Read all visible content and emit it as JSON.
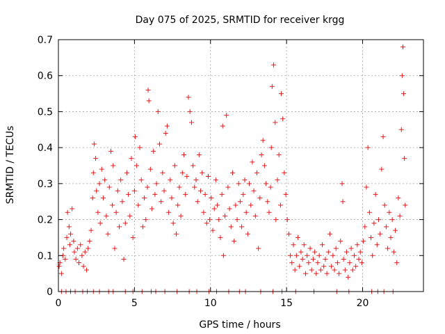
{
  "chart_data": {
    "type": "scatter",
    "title": "Day 075 of 2025, SRMTID for receiver krgg",
    "xlabel": "GPS time / hours",
    "ylabel": "SRMTID / TECUs",
    "xlim": [
      0,
      24
    ],
    "ylim": [
      0,
      0.7
    ],
    "xticks": [
      0,
      5,
      10,
      15,
      20
    ],
    "xtick_labels": [
      "0",
      "5",
      "10",
      "15",
      "20"
    ],
    "yticks": [
      0,
      0.1,
      0.2,
      0.3,
      0.4,
      0.5,
      0.6,
      0.7
    ],
    "ytick_labels": [
      "0",
      "0.1",
      "0.2",
      "0.3",
      "0.4",
      "0.5",
      "0.6",
      "0.7"
    ],
    "grid": true,
    "marker": "+",
    "color": "#e41a1c",
    "series": [
      {
        "name": "SRMTID",
        "points": [
          [
            0.05,
            0.07
          ],
          [
            0.1,
            0.08
          ],
          [
            0.2,
            0.05
          ],
          [
            0.3,
            0.1
          ],
          [
            0.35,
            0.12
          ],
          [
            0.45,
            0.09
          ],
          [
            0.55,
            0.15
          ],
          [
            0.6,
            0.22
          ],
          [
            0.7,
            0.18
          ],
          [
            0.75,
            0.13
          ],
          [
            0.8,
            0.16
          ],
          [
            0.9,
            0.23
          ],
          [
            1.0,
            0.14
          ],
          [
            1.05,
            0.11
          ],
          [
            1.15,
            0.09
          ],
          [
            1.25,
            0.12
          ],
          [
            1.35,
            0.08
          ],
          [
            1.45,
            0.13
          ],
          [
            1.55,
            0.1
          ],
          [
            1.65,
            0.07
          ],
          [
            1.75,
            0.11
          ],
          [
            1.85,
            0.06
          ],
          [
            1.95,
            0.12
          ],
          [
            2.05,
            0.14
          ],
          [
            2.15,
            0.17
          ],
          [
            2.25,
            0.26
          ],
          [
            2.3,
            0.33
          ],
          [
            2.35,
            0.41
          ],
          [
            2.45,
            0.37
          ],
          [
            2.5,
            0.28
          ],
          [
            2.6,
            0.22
          ],
          [
            2.7,
            0.3
          ],
          [
            2.75,
            0.19
          ],
          [
            2.85,
            0.34
          ],
          [
            2.95,
            0.26
          ],
          [
            3.05,
            0.31
          ],
          [
            3.15,
            0.21
          ],
          [
            3.25,
            0.16
          ],
          [
            3.35,
            0.29
          ],
          [
            3.45,
            0.39
          ],
          [
            3.55,
            0.24
          ],
          [
            3.6,
            0.35
          ],
          [
            3.7,
            0.12
          ],
          [
            3.8,
            0.22
          ],
          [
            3.9,
            0.28
          ],
          [
            4.0,
            0.18
          ],
          [
            4.1,
            0.31
          ],
          [
            4.2,
            0.25
          ],
          [
            4.3,
            0.09
          ],
          [
            4.4,
            0.19
          ],
          [
            4.5,
            0.33
          ],
          [
            4.6,
            0.27
          ],
          [
            4.7,
            0.21
          ],
          [
            4.8,
            0.37
          ],
          [
            4.9,
            0.15
          ],
          [
            5.0,
            0.28
          ],
          [
            5.05,
            0.43
          ],
          [
            5.15,
            0.35
          ],
          [
            5.25,
            0.24
          ],
          [
            5.35,
            0.4
          ],
          [
            5.45,
            0.31
          ],
          [
            5.55,
            0.18
          ],
          [
            5.65,
            0.26
          ],
          [
            5.75,
            0.2
          ],
          [
            5.85,
            0.29
          ],
          [
            5.9,
            0.56
          ],
          [
            5.95,
            0.53
          ],
          [
            6.05,
            0.34
          ],
          [
            6.15,
            0.23
          ],
          [
            6.25,
            0.39
          ],
          [
            6.35,
            0.27
          ],
          [
            6.45,
            0.3
          ],
          [
            6.55,
            0.5
          ],
          [
            6.65,
            0.41
          ],
          [
            6.75,
            0.25
          ],
          [
            6.85,
            0.33
          ],
          [
            6.95,
            0.28
          ],
          [
            7.05,
            0.44
          ],
          [
            7.15,
            0.46
          ],
          [
            7.25,
            0.22
          ],
          [
            7.35,
            0.31
          ],
          [
            7.45,
            0.26
          ],
          [
            7.55,
            0.19
          ],
          [
            7.65,
            0.35
          ],
          [
            7.75,
            0.16
          ],
          [
            7.85,
            0.24
          ],
          [
            7.95,
            0.29
          ],
          [
            8.05,
            0.21
          ],
          [
            8.15,
            0.33
          ],
          [
            8.25,
            0.38
          ],
          [
            8.35,
            0.27
          ],
          [
            8.45,
            0.32
          ],
          [
            8.55,
            0.54
          ],
          [
            8.65,
            0.5
          ],
          [
            8.75,
            0.47
          ],
          [
            8.85,
            0.35
          ],
          [
            8.95,
            0.29
          ],
          [
            9.05,
            0.31
          ],
          [
            9.15,
            0.25
          ],
          [
            9.25,
            0.38
          ],
          [
            9.35,
            0.28
          ],
          [
            9.45,
            0.33
          ],
          [
            9.55,
            0.22
          ],
          [
            9.65,
            0.27
          ],
          [
            9.75,
            0.19
          ],
          [
            9.85,
            0.32
          ],
          [
            9.95,
            0.2
          ],
          [
            10.05,
            0.26
          ],
          [
            10.15,
            0.17
          ],
          [
            10.25,
            0.23
          ],
          [
            10.35,
            0.31
          ],
          [
            10.45,
            0.24
          ],
          [
            10.55,
            0.2
          ],
          [
            10.65,
            0.15
          ],
          [
            10.75,
            0.27
          ],
          [
            10.8,
            0.46
          ],
          [
            10.85,
            0.1
          ],
          [
            10.95,
            0.21
          ],
          [
            11.05,
            0.49
          ],
          [
            11.15,
            0.29
          ],
          [
            11.25,
            0.23
          ],
          [
            11.35,
            0.18
          ],
          [
            11.45,
            0.33
          ],
          [
            11.55,
            0.14
          ],
          [
            11.65,
            0.24
          ],
          [
            11.75,
            0.2
          ],
          [
            11.85,
            0.3
          ],
          [
            11.95,
            0.25
          ],
          [
            12.05,
            0.18
          ],
          [
            12.15,
            0.27
          ],
          [
            12.25,
            0.31
          ],
          [
            12.35,
            0.22
          ],
          [
            12.45,
            0.16
          ],
          [
            12.55,
            0.3
          ],
          [
            12.65,
            0.24
          ],
          [
            12.75,
            0.36
          ],
          [
            12.85,
            0.28
          ],
          [
            12.95,
            0.21
          ],
          [
            13.05,
            0.33
          ],
          [
            13.15,
            0.12
          ],
          [
            13.25,
            0.26
          ],
          [
            13.35,
            0.38
          ],
          [
            13.45,
            0.42
          ],
          [
            13.55,
            0.35
          ],
          [
            13.65,
            0.3
          ],
          [
            13.75,
            0.25
          ],
          [
            13.85,
            0.22
          ],
          [
            13.95,
            0.29
          ],
          [
            14.0,
            0.4
          ],
          [
            14.05,
            0.57
          ],
          [
            14.15,
            0.63
          ],
          [
            14.25,
            0.47
          ],
          [
            14.3,
            0.2
          ],
          [
            14.4,
            0.31
          ],
          [
            14.5,
            0.38
          ],
          [
            14.6,
            0.24
          ],
          [
            14.65,
            0.55
          ],
          [
            14.75,
            0.48
          ],
          [
            14.85,
            0.33
          ],
          [
            14.95,
            0.27
          ],
          [
            15.05,
            0.2
          ],
          [
            15.15,
            0.16
          ],
          [
            15.25,
            0.1
          ],
          [
            15.35,
            0.08
          ],
          [
            15.45,
            0.13
          ],
          [
            15.55,
            0.06
          ],
          [
            15.65,
            0.1
          ],
          [
            15.75,
            0.15
          ],
          [
            15.85,
            0.07
          ],
          [
            15.95,
            0.11
          ],
          [
            16.05,
            0.09
          ],
          [
            16.15,
            0.13
          ],
          [
            16.25,
            0.05
          ],
          [
            16.35,
            0.1
          ],
          [
            16.45,
            0.08
          ],
          [
            16.55,
            0.12
          ],
          [
            16.65,
            0.06
          ],
          [
            16.75,
            0.09
          ],
          [
            16.85,
            0.11
          ],
          [
            16.95,
            0.05
          ],
          [
            17.05,
            0.08
          ],
          [
            17.15,
            0.1
          ],
          [
            17.25,
            0.06
          ],
          [
            17.35,
            0.13
          ],
          [
            17.45,
            0.07
          ],
          [
            17.55,
            0.09
          ],
          [
            17.65,
            0.05
          ],
          [
            17.75,
            0.11
          ],
          [
            17.85,
            0.16
          ],
          [
            17.95,
            0.07
          ],
          [
            18.05,
            0.1
          ],
          [
            18.15,
            0.06
          ],
          [
            18.25,
            0.12
          ],
          [
            18.35,
            0.08
          ],
          [
            18.45,
            0.05
          ],
          [
            18.55,
            0.14
          ],
          [
            18.65,
            0.3
          ],
          [
            18.7,
            0.25
          ],
          [
            18.75,
            0.09
          ],
          [
            18.85,
            0.06
          ],
          [
            18.95,
            0.11
          ],
          [
            19.05,
            0.04
          ],
          [
            19.15,
            0.08
          ],
          [
            19.25,
            0.12
          ],
          [
            19.35,
            0.06
          ],
          [
            19.45,
            0.1
          ],
          [
            19.55,
            0.07
          ],
          [
            19.65,
            0.13
          ],
          [
            19.75,
            0.09
          ],
          [
            19.85,
            0.11
          ],
          [
            19.95,
            0.08
          ],
          [
            20.05,
            0.14
          ],
          [
            20.15,
            0.18
          ],
          [
            20.25,
            0.29
          ],
          [
            20.35,
            0.4
          ],
          [
            20.45,
            0.22
          ],
          [
            20.55,
            0.15
          ],
          [
            20.65,
            0.1
          ],
          [
            20.75,
            0.19
          ],
          [
            20.85,
            0.27
          ],
          [
            20.95,
            0.13
          ],
          [
            21.05,
            0.2
          ],
          [
            21.15,
            0.16
          ],
          [
            21.25,
            0.34
          ],
          [
            21.35,
            0.43
          ],
          [
            21.45,
            0.24
          ],
          [
            21.55,
            0.18
          ],
          [
            21.65,
            0.12
          ],
          [
            21.75,
            0.22
          ],
          [
            21.85,
            0.15
          ],
          [
            21.95,
            0.2
          ],
          [
            22.05,
            0.11
          ],
          [
            22.15,
            0.17
          ],
          [
            22.25,
            0.08
          ],
          [
            22.35,
            0.26
          ],
          [
            22.45,
            0.21
          ],
          [
            22.55,
            0.45
          ],
          [
            22.6,
            0.6
          ],
          [
            22.65,
            0.68
          ],
          [
            22.7,
            0.55
          ],
          [
            22.75,
            0.37
          ],
          [
            22.8,
            0.24
          ]
        ]
      }
    ],
    "zero_points_x": [
      0.2,
      0.5,
      0.8,
      1.1,
      1.6,
      1.9,
      2.3,
      2.7,
      3.3,
      3.6,
      4.4,
      4.9,
      5.5,
      6.1,
      6.4,
      7.0,
      7.8,
      8.6,
      9.1,
      9.9,
      10.4,
      11.2,
      11.9,
      12.3,
      13.3,
      14.1,
      14.7,
      15.6,
      16.8,
      18.3,
      19.1,
      20.6,
      21.0,
      21.4,
      22.0
    ]
  }
}
